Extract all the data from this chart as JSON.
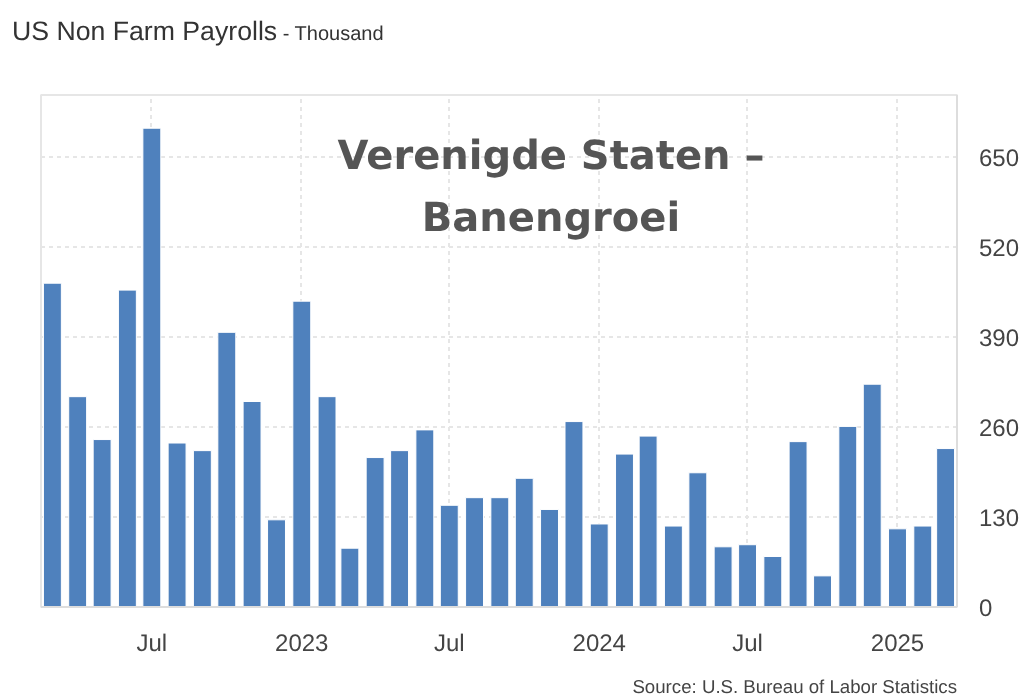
{
  "chart_data": {
    "type": "bar",
    "title": "US Non Farm Payrolls",
    "subtitle": "- Thousand",
    "x": [
      "2022-03",
      "2022-04",
      "2022-05",
      "2022-06",
      "2022-07",
      "2022-08",
      "2022-09",
      "2022-10",
      "2022-11",
      "2022-12",
      "2023-01",
      "2023-02",
      "2023-03",
      "2023-04",
      "2023-05",
      "2023-06",
      "2023-07",
      "2023-08",
      "2023-09",
      "2023-10",
      "2023-11",
      "2023-12",
      "2024-01",
      "2024-02",
      "2024-03",
      "2024-04",
      "2024-05",
      "2024-06",
      "2024-07",
      "2024-08",
      "2024-09",
      "2024-10",
      "2024-11",
      "2024-12",
      "2025-01",
      "2025-02",
      "2025-03"
    ],
    "values": [
      468,
      304,
      242,
      458,
      692,
      237,
      226,
      397,
      297,
      126,
      442,
      304,
      85,
      216,
      226,
      256,
      147,
      158,
      158,
      186,
      141,
      268,
      120,
      221,
      247,
      117,
      194,
      87,
      90,
      73,
      239,
      45,
      261,
      322,
      113,
      117,
      229
    ],
    "color": "#4f81bd",
    "xlim": [
      "2022-02-15",
      "2025-03-15"
    ],
    "xticks": [
      {
        "value": "2022-07",
        "label": "Jul"
      },
      {
        "value": "2023-01",
        "label": "2023"
      },
      {
        "value": "2023-07",
        "label": "Jul"
      },
      {
        "value": "2024-01",
        "label": "2024"
      },
      {
        "value": "2024-07",
        "label": "Jul"
      },
      {
        "value": "2025-01",
        "label": "2025"
      }
    ],
    "ylim": [
      0,
      740
    ],
    "yticks": [
      0,
      130,
      260,
      390,
      520,
      650
    ],
    "grid": true,
    "annotations": [
      "Verenigde Staten – Banengroei",
      "Source: U.S. Bureau of Labor Statistics"
    ]
  }
}
